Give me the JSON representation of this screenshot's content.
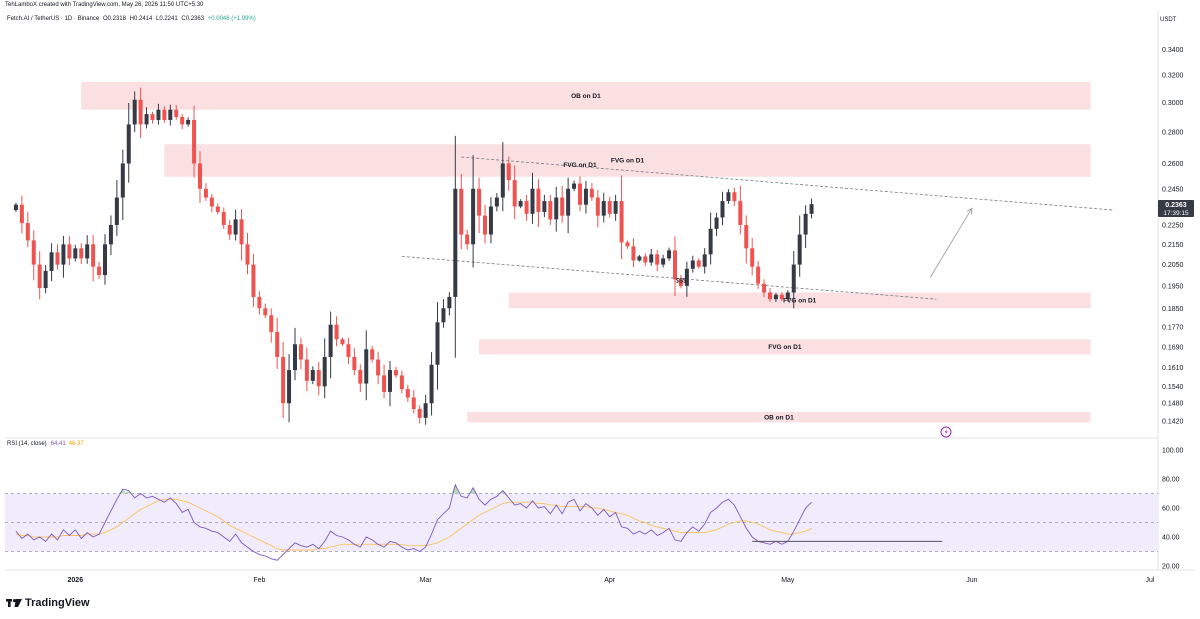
{
  "header": {
    "credit": "TehLamboX created with TradingView.com, May 26, 2026 11:50 UTC+5:30",
    "symbol": "Fetch.AI / TetherUS · 1D · Binance",
    "open": "O0.2318",
    "high": "H0.2414",
    "low": "L0.2241",
    "close": "C0.2363",
    "change": "+0.0046 (+1.99%)",
    "currency": "USDT"
  },
  "price_panel": {
    "current_price": "0.2363",
    "countdown": "17:39:15"
  },
  "rsi_panel": {
    "title": "RSI (14, close)",
    "rsi_value": "64.41",
    "ma_value": "46.37"
  },
  "footer": {
    "brand": "TradingView"
  },
  "colors": {
    "up": "#26a69a",
    "up_body": "#363a45",
    "down": "#ef5350",
    "zone": "#fbe0e2",
    "rsi_line": "#7e57c2",
    "rsi_ma": "#f7c35e",
    "rsi_band": "#ede7f6"
  },
  "chart_data": [
    {
      "type": "candlestick",
      "title": "Fetch.AI / TetherUS · 1D · Binance",
      "y_axis": {
        "ticks": [
          0.142,
          0.148,
          0.154,
          0.161,
          0.169,
          0.177,
          0.185,
          0.195,
          0.205,
          0.215,
          0.225,
          0.235,
          0.245,
          0.26,
          0.28,
          0.3,
          0.32,
          0.34
        ],
        "tick_labels": [
          "0.1420",
          "0.1480",
          "0.1540",
          "0.1610",
          "0.1690",
          "0.1770",
          "0.1850",
          "0.1950",
          "0.2050",
          "0.2150",
          "0.2250",
          "0.2350",
          "0.2450",
          "0.2600",
          "0.2800",
          "0.3000",
          "0.3200",
          "0.3400"
        ],
        "scale": "log",
        "range": [
          0.138,
          0.36
        ]
      },
      "x_axis": {
        "tick_labels": [
          "2026",
          "Feb",
          "Mar",
          "Apr",
          "May",
          "Jun",
          "Jul"
        ],
        "range": [
          "2025-12-21",
          "2026-07-01"
        ]
      },
      "closes": [
        0.236,
        0.226,
        0.217,
        0.205,
        0.194,
        0.202,
        0.211,
        0.205,
        0.215,
        0.208,
        0.213,
        0.208,
        0.215,
        0.204,
        0.2,
        0.215,
        0.225,
        0.24,
        0.26,
        0.285,
        0.302,
        0.285,
        0.292,
        0.288,
        0.295,
        0.288,
        0.295,
        0.29,
        0.285,
        0.288,
        0.26,
        0.245,
        0.24,
        0.235,
        0.232,
        0.225,
        0.22,
        0.228,
        0.215,
        0.205,
        0.19,
        0.185,
        0.182,
        0.175,
        0.165,
        0.148,
        0.16,
        0.17,
        0.164,
        0.156,
        0.16,
        0.154,
        0.165,
        0.178,
        0.172,
        0.17,
        0.165,
        0.16,
        0.155,
        0.168,
        0.164,
        0.158,
        0.152,
        0.16,
        0.158,
        0.153,
        0.15,
        0.146,
        0.143,
        0.148,
        0.162,
        0.179,
        0.185,
        0.19,
        0.245,
        0.22,
        0.215,
        0.245,
        0.23,
        0.22,
        0.235,
        0.24,
        0.26,
        0.25,
        0.235,
        0.238,
        0.231,
        0.245,
        0.232,
        0.238,
        0.228,
        0.24,
        0.23,
        0.245,
        0.248,
        0.236,
        0.245,
        0.24,
        0.23,
        0.238,
        0.231,
        0.238,
        0.216,
        0.214,
        0.207,
        0.209,
        0.206,
        0.21,
        0.205,
        0.208,
        0.212,
        0.198,
        0.195,
        0.203,
        0.207,
        0.204,
        0.21,
        0.223,
        0.229,
        0.238,
        0.243,
        0.238,
        0.225,
        0.213,
        0.204,
        0.196,
        0.192,
        0.189,
        0.191,
        0.189,
        0.192,
        0.205,
        0.22,
        0.231,
        0.2363
      ],
      "zones": [
        {
          "label": "OB on D1",
          "low": 0.295,
          "high": 0.315,
          "start": "2026-01-02",
          "end": "2026-06-21"
        },
        {
          "label": "FVG on D1",
          "low": 0.252,
          "high": 0.272,
          "start": "2026-01-16",
          "end": "2026-06-21"
        },
        {
          "label": "FVG on D1",
          "low": 0.185,
          "high": 0.192,
          "start": "2026-03-15",
          "end": "2026-06-21"
        },
        {
          "label": "FVG on D1",
          "low": 0.166,
          "high": 0.172,
          "start": "2026-03-10",
          "end": "2026-06-21"
        },
        {
          "label": "OB on D1",
          "low": 0.1415,
          "high": 0.145,
          "start": "2026-03-08",
          "end": "2026-06-21"
        }
      ],
      "annotations": [
        "$$$"
      ],
      "trendlines": [
        {
          "from": [
            "2026-03-07",
            0.264
          ],
          "to": [
            "2026-06-25",
            0.233
          ],
          "style": "dashed"
        },
        {
          "from": [
            "2026-02-25",
            0.209
          ],
          "to": [
            "2026-05-26",
            0.189
          ],
          "style": "dashed"
        },
        {
          "from": [
            "2026-05-25",
            0.199
          ],
          "to": [
            "2026-06-01",
            0.234
          ],
          "style": "arrow"
        }
      ]
    },
    {
      "type": "line",
      "title": "RSI (14, close)",
      "y_axis": {
        "range": [
          20,
          100
        ],
        "tick_labels": [
          "100.00",
          "80.00",
          "60.00",
          "40.00",
          "20.00"
        ]
      },
      "bands": {
        "upper": 70,
        "middle": 50,
        "lower": 30
      },
      "series": [
        {
          "name": "RSI",
          "values": [
            44,
            39,
            42,
            38,
            40,
            37,
            42,
            38,
            45,
            41,
            45,
            39,
            43,
            40,
            42,
            50,
            58,
            66,
            73,
            72,
            67,
            70,
            67,
            68,
            66,
            64,
            67,
            63,
            57,
            59,
            50,
            47,
            46,
            44,
            43,
            40,
            37,
            42,
            36,
            33,
            30,
            28,
            27,
            25,
            24,
            28,
            32,
            36,
            34,
            33,
            35,
            32,
            37,
            44,
            41,
            40,
            38,
            35,
            33,
            40,
            38,
            35,
            33,
            37,
            36,
            33,
            31,
            32,
            30,
            33,
            42,
            52,
            56,
            60,
            76,
            68,
            67,
            74,
            66,
            62,
            66,
            68,
            72,
            67,
            62,
            63,
            60,
            65,
            60,
            61,
            56,
            62,
            56,
            64,
            66,
            58,
            63,
            60,
            55,
            59,
            54,
            57,
            47,
            46,
            42,
            44,
            42,
            45,
            41,
            43,
            46,
            38,
            37,
            43,
            47,
            44,
            49,
            57,
            60,
            64,
            66,
            62,
            54,
            46,
            40,
            37,
            36,
            35,
            37,
            35,
            37,
            44,
            52,
            60,
            64
          ]
        },
        {
          "name": "RSI-based MA",
          "values": [
            42,
            41,
            41,
            40,
            40,
            40,
            40,
            40,
            41,
            41,
            41,
            41,
            42,
            42,
            42,
            43,
            45,
            47,
            50,
            53,
            56,
            59,
            61,
            63,
            65,
            66,
            66,
            66,
            65,
            64,
            62,
            60,
            58,
            56,
            54,
            51,
            48,
            46,
            44,
            42,
            40,
            38,
            36,
            34,
            32,
            31,
            31,
            31,
            31,
            31,
            31,
            32,
            32,
            33,
            34,
            35,
            35,
            35,
            35,
            35,
            35,
            35,
            35,
            35,
            35,
            35,
            34,
            34,
            34,
            34,
            35,
            36,
            38,
            40,
            43,
            46,
            49,
            52,
            55,
            57,
            59,
            61,
            63,
            64,
            64,
            64,
            64,
            64,
            63,
            63,
            62,
            62,
            61,
            61,
            61,
            61,
            61,
            60,
            60,
            59,
            58,
            57,
            56,
            55,
            53,
            51,
            50,
            48,
            47,
            46,
            45,
            44,
            43,
            43,
            43,
            43,
            43,
            44,
            45,
            47,
            49,
            50,
            51,
            51,
            50,
            49,
            47,
            45,
            44,
            43,
            42,
            42,
            43,
            44,
            46
          ]
        }
      ],
      "annotations": [
        "support line at ~37"
      ]
    }
  ]
}
